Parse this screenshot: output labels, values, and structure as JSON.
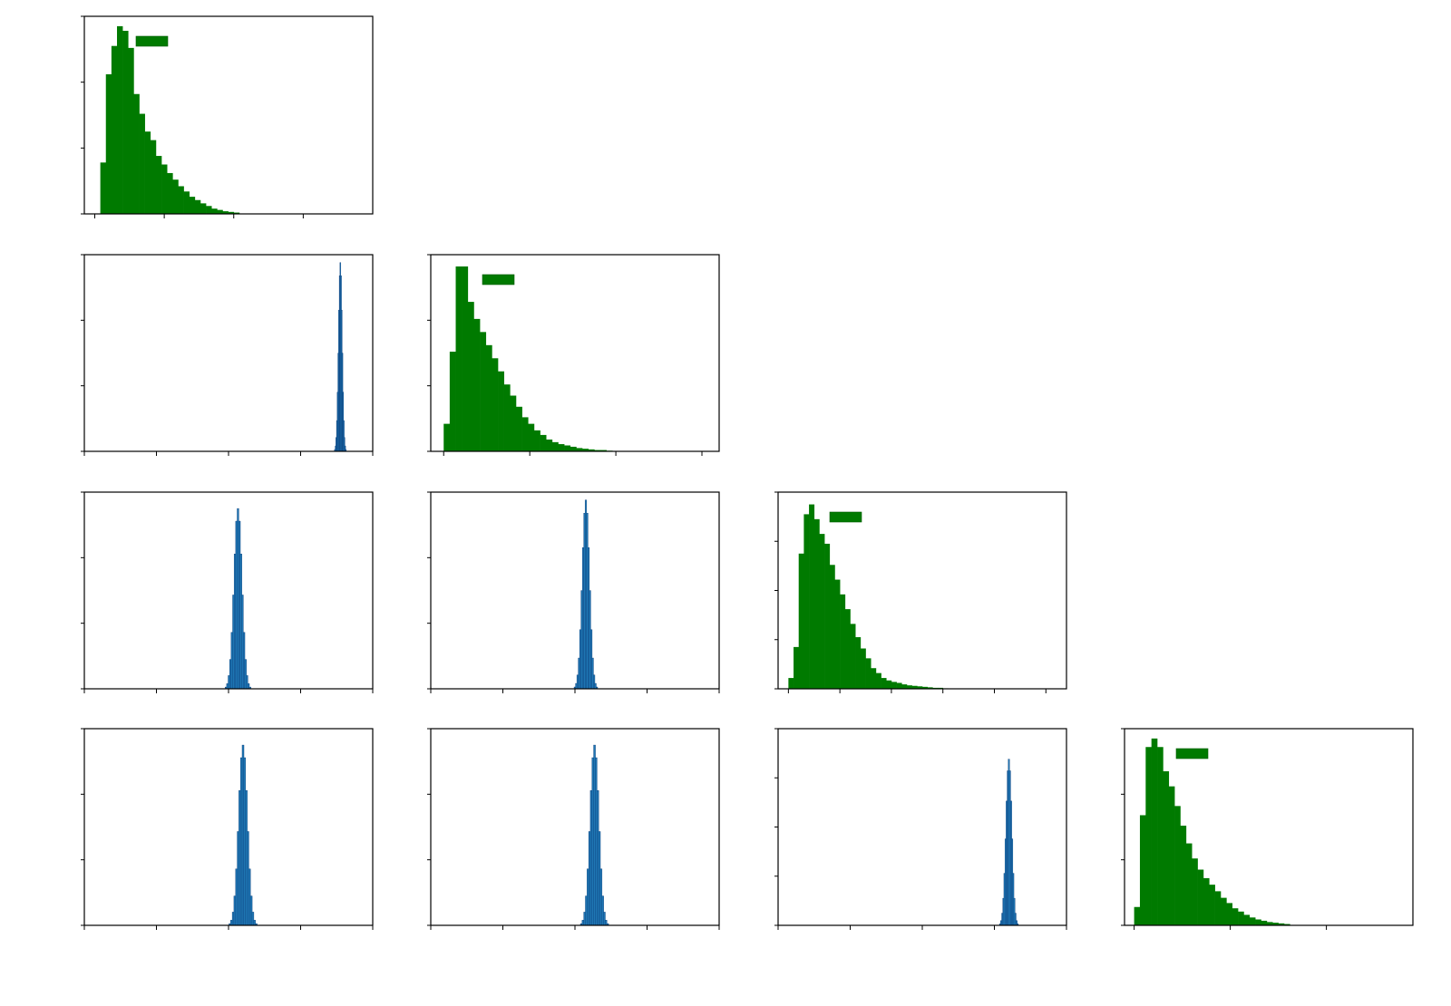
{
  "figure": {
    "layout": "lower-triangular-grid",
    "rows": 4,
    "cols": 4,
    "tick_labels_visible": false,
    "legend_placement": "top-left"
  },
  "chart_data": [
    {
      "type": "bar",
      "row": 0,
      "col": 0,
      "kind": "green",
      "color": "#007a00",
      "legend_swatch": true,
      "x_ticks": [
        0,
        1,
        2,
        3
      ],
      "xlim": [
        -0.15,
        4.0
      ],
      "y_ticks": [
        0,
        1,
        2,
        3
      ],
      "ylim": [
        0,
        3.0
      ],
      "bin_start": 0.0,
      "bin_width": 0.08,
      "values": [
        0.0,
        0.78,
        2.12,
        2.55,
        2.85,
        2.78,
        2.52,
        1.82,
        1.52,
        1.25,
        1.12,
        0.88,
        0.75,
        0.62,
        0.52,
        0.42,
        0.34,
        0.26,
        0.21,
        0.16,
        0.12,
        0.08,
        0.06,
        0.04,
        0.03,
        0.02
      ]
    },
    {
      "type": "bar",
      "row": 1,
      "col": 0,
      "kind": "blue",
      "color": "#1f77b4",
      "legend_swatch": false,
      "x_ticks": [
        0,
        1,
        2,
        3,
        4
      ],
      "xlim": [
        0,
        4
      ],
      "y_ticks": [
        0,
        1,
        2,
        3
      ],
      "ylim": [
        0,
        3.0
      ],
      "peak": 3.55,
      "spread": 0.025,
      "height": 2.88
    },
    {
      "type": "bar",
      "row": 1,
      "col": 1,
      "kind": "green",
      "color": "#007a00",
      "legend_swatch": true,
      "x_ticks": [
        0,
        1,
        2,
        3
      ],
      "xlim": [
        -0.15,
        3.2
      ],
      "y_ticks": [
        0,
        1,
        2,
        3
      ],
      "ylim": [
        0,
        3.0
      ],
      "bin_start": 0.0,
      "bin_width": 0.07,
      "values": [
        0.42,
        1.52,
        2.82,
        2.82,
        2.28,
        2.02,
        1.82,
        1.62,
        1.42,
        1.22,
        1.02,
        0.85,
        0.68,
        0.52,
        0.42,
        0.32,
        0.25,
        0.18,
        0.14,
        0.11,
        0.09,
        0.07,
        0.05,
        0.04,
        0.03,
        0.02,
        0.02,
        0.01
      ]
    },
    {
      "type": "bar",
      "row": 2,
      "col": 0,
      "kind": "blue",
      "color": "#1f77b4",
      "legend_swatch": false,
      "x_ticks": [
        0,
        1,
        2,
        3,
        4
      ],
      "xlim": [
        0,
        4
      ],
      "y_ticks": [
        0,
        1,
        2,
        3
      ],
      "ylim": [
        0,
        3.0
      ],
      "peak": 2.13,
      "spread": 0.055,
      "height": 2.75
    },
    {
      "type": "bar",
      "row": 2,
      "col": 1,
      "kind": "blue",
      "color": "#1f77b4",
      "legend_swatch": false,
      "x_ticks": [
        0,
        1,
        2,
        3,
        4
      ],
      "xlim": [
        0,
        4
      ],
      "y_ticks": [
        0,
        1,
        2,
        3
      ],
      "ylim": [
        0,
        3.0
      ],
      "peak": 2.15,
      "spread": 0.05,
      "height": 2.88
    },
    {
      "type": "bar",
      "row": 2,
      "col": 2,
      "kind": "green",
      "color": "#007a00",
      "legend_swatch": true,
      "x_ticks": [
        0,
        1,
        2,
        3,
        4,
        5
      ],
      "xlim": [
        -0.2,
        5.4
      ],
      "y_ticks": [
        0,
        1,
        2,
        3,
        4
      ],
      "ylim": [
        0,
        4.0
      ],
      "bin_start": 0.0,
      "bin_width": 0.1,
      "values": [
        0.22,
        0.85,
        2.75,
        3.55,
        3.75,
        3.45,
        3.15,
        2.95,
        2.52,
        2.22,
        1.92,
        1.62,
        1.32,
        1.05,
        0.82,
        0.62,
        0.42,
        0.32,
        0.22,
        0.17,
        0.14,
        0.12,
        0.09,
        0.07,
        0.06,
        0.05,
        0.04,
        0.03,
        0.02,
        0.02,
        0.01
      ]
    },
    {
      "type": "bar",
      "row": 3,
      "col": 0,
      "kind": "blue",
      "color": "#1f77b4",
      "legend_swatch": false,
      "x_ticks": [
        0,
        1,
        2,
        3,
        4
      ],
      "xlim": [
        0,
        4
      ],
      "y_ticks": [
        0,
        1,
        2,
        3
      ],
      "ylim": [
        0,
        3.0
      ],
      "peak": 2.2,
      "spread": 0.06,
      "height": 2.75
    },
    {
      "type": "bar",
      "row": 3,
      "col": 1,
      "kind": "blue",
      "color": "#1f77b4",
      "legend_swatch": false,
      "x_ticks": [
        0,
        1,
        2,
        3,
        4
      ],
      "xlim": [
        0,
        4
      ],
      "y_ticks": [
        0,
        1,
        2,
        3
      ],
      "ylim": [
        0,
        3.0
      ],
      "peak": 2.27,
      "spread": 0.06,
      "height": 2.75
    },
    {
      "type": "bar",
      "row": 3,
      "col": 2,
      "kind": "blue",
      "color": "#1f77b4",
      "legend_swatch": false,
      "x_ticks": [
        0,
        1,
        2,
        3,
        4
      ],
      "xlim": [
        0,
        4
      ],
      "y_ticks": [
        0,
        1,
        2,
        3,
        4
      ],
      "ylim": [
        0,
        4.0
      ],
      "peak": 3.2,
      "spread": 0.04,
      "height": 3.38
    },
    {
      "type": "bar",
      "row": 3,
      "col": 3,
      "kind": "green",
      "color": "#007a00",
      "legend_swatch": true,
      "x_ticks": [
        0,
        1,
        2
      ],
      "xlim": [
        -0.1,
        2.9
      ],
      "y_ticks": [
        0,
        1,
        2,
        3
      ],
      "ylim": [
        0,
        3.0
      ],
      "bin_start": 0.0,
      "bin_width": 0.06,
      "values": [
        0.28,
        1.68,
        2.72,
        2.85,
        2.72,
        2.35,
        2.12,
        1.82,
        1.52,
        1.25,
        1.02,
        0.85,
        0.72,
        0.62,
        0.52,
        0.42,
        0.34,
        0.26,
        0.21,
        0.16,
        0.12,
        0.09,
        0.07,
        0.05,
        0.04,
        0.03,
        0.02
      ]
    }
  ]
}
